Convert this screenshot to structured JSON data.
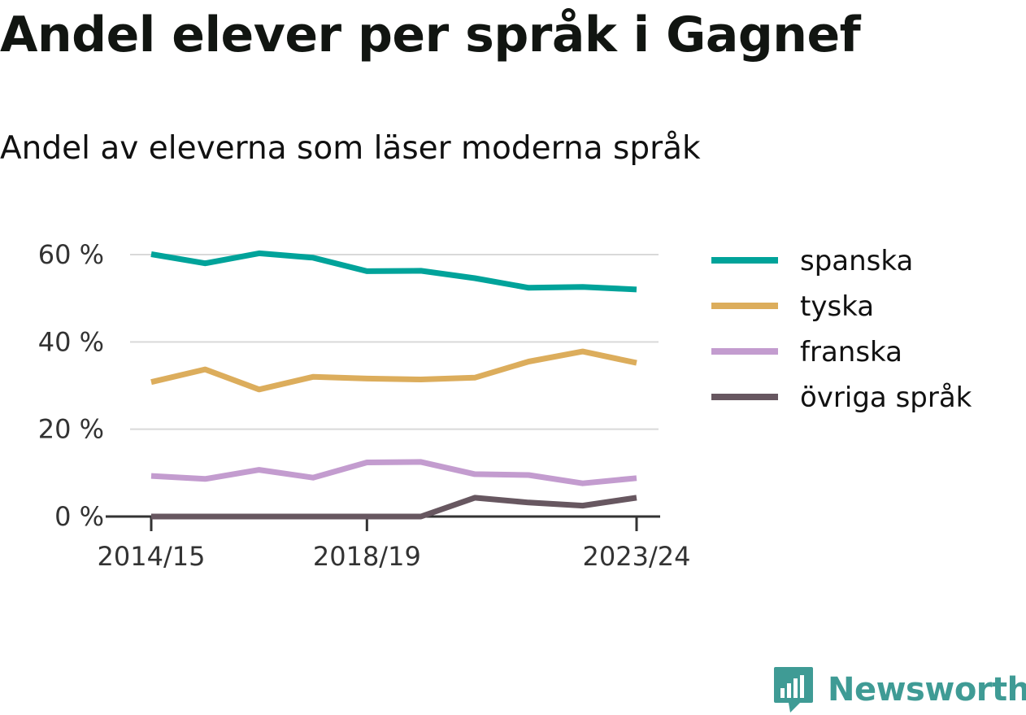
{
  "chart_data": {
    "type": "line",
    "title": "Andel elever per språk i Gagnef",
    "subtitle": "Andel av eleverna som läser moderna språk",
    "x": [
      "2014/15",
      "2015/16",
      "2016/17",
      "2017/18",
      "2018/19",
      "2019/20",
      "2020/21",
      "2021/22",
      "2022/23",
      "2023/24"
    ],
    "x_ticks": [
      "2014/15",
      "2018/19",
      "2023/24"
    ],
    "y_ticks": [
      0,
      20,
      40,
      60
    ],
    "y_tick_suffix": " %",
    "ylim": [
      0,
      60
    ],
    "grid": true,
    "legend_position": "right",
    "series": [
      {
        "name": "spanska",
        "color": "#00a39a",
        "values": [
          60.1,
          58.0,
          60.3,
          59.3,
          56.2,
          56.3,
          54.6,
          52.4,
          52.6,
          52.0
        ]
      },
      {
        "name": "tyska",
        "color": "#dcad5c",
        "values": [
          30.8,
          33.7,
          29.1,
          32.0,
          31.6,
          31.4,
          31.8,
          35.5,
          37.8,
          35.2
        ]
      },
      {
        "name": "franska",
        "color": "#c39ccf",
        "values": [
          9.3,
          8.6,
          10.7,
          8.9,
          12.4,
          12.5,
          9.7,
          9.5,
          7.6,
          8.8
        ]
      },
      {
        "name": "övriga språk",
        "color": "#675760",
        "values": [
          0,
          0,
          0,
          0,
          0,
          0,
          4.3,
          3.2,
          2.5,
          4.3
        ]
      }
    ]
  },
  "brand": {
    "name": "Newsworthy",
    "color": "#3f9b95",
    "icon": "newsworthy-logo-icon"
  }
}
